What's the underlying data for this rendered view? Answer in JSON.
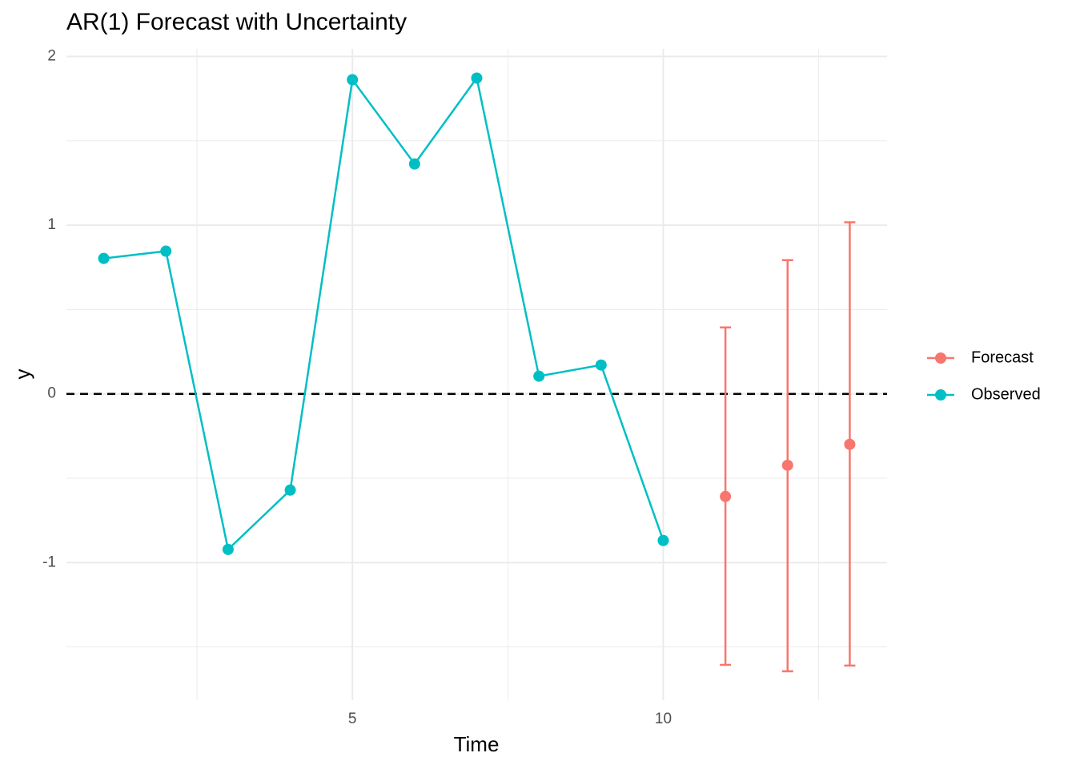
{
  "chart_data": {
    "type": "line",
    "title": "AR(1) Forecast with Uncertainty",
    "x_label": "Time",
    "y_label": "y",
    "series": [
      {
        "name": "Forecast",
        "color": "#F8766D",
        "x": [
          11,
          12,
          13
        ],
        "values": [
          -0.608,
          -0.423,
          -0.299
        ],
        "lower": [
          -1.606,
          -1.644,
          -1.61
        ],
        "upper": [
          0.394,
          0.793,
          1.017
        ]
      },
      {
        "name": "Observed",
        "color": "#00BFC4",
        "x": [
          1,
          2,
          3,
          4,
          5,
          6,
          7,
          8,
          9,
          10
        ],
        "values": [
          0.803,
          0.846,
          -0.922,
          -0.57,
          1.862,
          1.363,
          1.872,
          0.105,
          0.171,
          -0.869
        ]
      }
    ],
    "xlim": [
      0.4,
      13.6
    ],
    "xticks": [
      5,
      10
    ],
    "x_minor_grid": [
      2.5,
      7.5,
      12.5
    ],
    "ylim": [
      -1.815,
      2.045
    ],
    "yticks": [
      -1,
      0,
      1,
      2
    ],
    "y_minor_grid": [
      -1.5,
      -0.5,
      0.5,
      1.5
    ],
    "hline": 0,
    "grid": true,
    "legend": "right"
  }
}
